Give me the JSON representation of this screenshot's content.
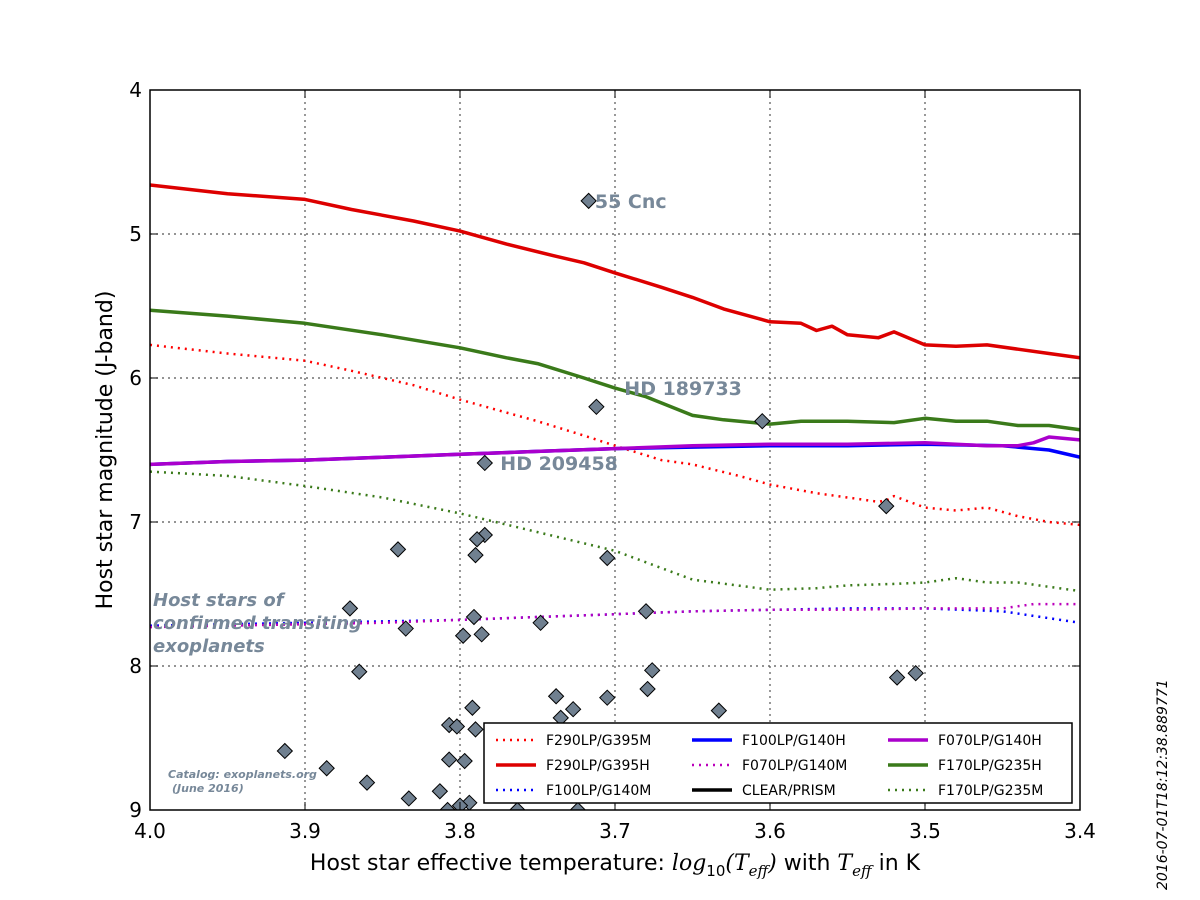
{
  "chart_data": {
    "type": "line",
    "xlabel_prefix": "Host star effective temperature: ",
    "xlabel_math1": "log",
    "xlabel_math1_sub": "10",
    "xlabel_math2": "(T",
    "xlabel_math2_sub": "eff",
    "xlabel_math3": ")",
    "xlabel_mid": " with ",
    "xlabel_math4": "T",
    "xlabel_math4_sub": "eff",
    "xlabel_suffix": " in K",
    "ylabel": "Host star magnitude (J-band)",
    "xlim": [
      4.0,
      3.4
    ],
    "ylim": [
      9,
      4
    ],
    "y_inverted": true,
    "grid": true,
    "grid_style": "dotted",
    "legend_placement": "lower-right",
    "x_ticks": [
      "4.0",
      "3.9",
      "3.8",
      "3.7",
      "3.6",
      "3.5",
      "3.4"
    ],
    "x_tick_values": [
      4.0,
      3.9,
      3.8,
      3.7,
      3.6,
      3.5,
      3.4
    ],
    "y_ticks": [
      "4",
      "5",
      "6",
      "7",
      "8",
      "9"
    ],
    "y_tick_values": [
      4,
      5,
      6,
      7,
      8,
      9
    ],
    "legend_columns": 3,
    "series": [
      {
        "name": "F290LP/G395M",
        "color": "#ff0000",
        "style": "dotted",
        "x": [
          4.0,
          3.95,
          3.9,
          3.87,
          3.83,
          3.8,
          3.77,
          3.75,
          3.72,
          3.7,
          3.67,
          3.65,
          3.62,
          3.6,
          3.57,
          3.55,
          3.53,
          3.525,
          3.52,
          3.5,
          3.48,
          3.46,
          3.44,
          3.42,
          3.4
        ],
        "y": [
          5.77,
          5.83,
          5.88,
          5.95,
          6.05,
          6.15,
          6.24,
          6.3,
          6.4,
          6.47,
          6.57,
          6.6,
          6.68,
          6.74,
          6.8,
          6.83,
          6.86,
          6.85,
          6.82,
          6.9,
          6.92,
          6.9,
          6.96,
          7.0,
          7.02
        ]
      },
      {
        "name": "F290LP/G395H",
        "color": "#dd0000",
        "style": "solid",
        "x": [
          4.0,
          3.95,
          3.9,
          3.87,
          3.83,
          3.8,
          3.77,
          3.74,
          3.72,
          3.7,
          3.67,
          3.65,
          3.63,
          3.6,
          3.58,
          3.57,
          3.56,
          3.55,
          3.53,
          3.52,
          3.5,
          3.48,
          3.46,
          3.44,
          3.42,
          3.4
        ],
        "y": [
          4.66,
          4.72,
          4.76,
          4.83,
          4.91,
          4.98,
          5.07,
          5.15,
          5.2,
          5.27,
          5.37,
          5.44,
          5.52,
          5.61,
          5.62,
          5.67,
          5.64,
          5.7,
          5.72,
          5.68,
          5.77,
          5.78,
          5.77,
          5.8,
          5.83,
          5.86
        ]
      },
      {
        "name": "F100LP/G140M",
        "color": "#0000ff",
        "style": "dotted",
        "x": [
          4.0,
          3.95,
          3.9,
          3.85,
          3.8,
          3.75,
          3.7,
          3.65,
          3.6,
          3.55,
          3.5,
          3.45,
          3.4
        ],
        "y": [
          7.72,
          7.71,
          7.7,
          7.69,
          7.68,
          7.66,
          7.64,
          7.62,
          7.61,
          7.6,
          7.6,
          7.62,
          7.7
        ]
      },
      {
        "name": "F100LP/G140H",
        "color": "#0000ff",
        "style": "solid",
        "x": [
          4.0,
          3.95,
          3.9,
          3.85,
          3.8,
          3.75,
          3.7,
          3.65,
          3.6,
          3.55,
          3.5,
          3.45,
          3.42,
          3.4
        ],
        "y": [
          6.6,
          6.58,
          6.57,
          6.55,
          6.53,
          6.51,
          6.49,
          6.48,
          6.47,
          6.47,
          6.46,
          6.47,
          6.5,
          6.55
        ]
      },
      {
        "name": "F070LP/G140M",
        "color": "#bb00bb",
        "style": "dotted",
        "x": [
          4.0,
          3.95,
          3.9,
          3.85,
          3.8,
          3.75,
          3.7,
          3.65,
          3.6,
          3.55,
          3.5,
          3.45,
          3.43,
          3.4
        ],
        "y": [
          7.73,
          7.72,
          7.71,
          7.7,
          7.68,
          7.66,
          7.64,
          7.62,
          7.61,
          7.61,
          7.6,
          7.6,
          7.57,
          7.57
        ]
      },
      {
        "name": "CLEAR/PRISM",
        "color": "#000000",
        "style": "solid",
        "x": [],
        "y": []
      },
      {
        "name": "F070LP/G140H",
        "color": "#aa00cc",
        "style": "solid",
        "x": [
          4.0,
          3.95,
          3.9,
          3.85,
          3.8,
          3.75,
          3.7,
          3.65,
          3.6,
          3.55,
          3.5,
          3.48,
          3.46,
          3.44,
          3.43,
          3.42,
          3.4
        ],
        "y": [
          6.6,
          6.58,
          6.57,
          6.55,
          6.53,
          6.51,
          6.49,
          6.47,
          6.46,
          6.46,
          6.45,
          6.46,
          6.47,
          6.47,
          6.45,
          6.41,
          6.43
        ]
      },
      {
        "name": "F170LP/G235H",
        "color": "#3a7a1a",
        "style": "solid",
        "x": [
          4.0,
          3.95,
          3.9,
          3.85,
          3.8,
          3.77,
          3.75,
          3.72,
          3.7,
          3.68,
          3.65,
          3.63,
          3.6,
          3.58,
          3.55,
          3.52,
          3.5,
          3.48,
          3.46,
          3.44,
          3.42,
          3.4
        ],
        "y": [
          5.53,
          5.57,
          5.62,
          5.7,
          5.79,
          5.86,
          5.9,
          6.0,
          6.07,
          6.13,
          6.26,
          6.29,
          6.32,
          6.3,
          6.3,
          6.31,
          6.28,
          6.3,
          6.3,
          6.33,
          6.33,
          6.36
        ]
      },
      {
        "name": "F170LP/G235M",
        "color": "#3a7a1a",
        "style": "dotted",
        "x": [
          4.0,
          3.95,
          3.9,
          3.85,
          3.8,
          3.75,
          3.7,
          3.65,
          3.6,
          3.57,
          3.55,
          3.52,
          3.5,
          3.48,
          3.46,
          3.44,
          3.42,
          3.4
        ],
        "y": [
          6.65,
          6.68,
          6.75,
          6.83,
          6.94,
          7.07,
          7.2,
          7.4,
          7.47,
          7.46,
          7.44,
          7.43,
          7.42,
          7.39,
          7.42,
          7.42,
          7.45,
          7.48
        ]
      }
    ],
    "scatter_points": {
      "x": [
        3.717,
        3.712,
        3.605,
        3.784,
        3.525,
        3.705,
        3.84,
        3.784,
        3.789,
        3.79,
        3.871,
        3.68,
        3.791,
        3.835,
        3.798,
        3.786,
        3.748,
        3.865,
        3.676,
        3.518,
        3.506,
        3.679,
        3.738,
        3.705,
        3.792,
        3.735,
        3.727,
        3.633,
        3.807,
        3.802,
        3.79,
        3.913,
        3.807,
        3.797,
        3.886,
        3.86,
        3.813,
        3.833,
        3.794,
        3.8,
        3.763,
        3.724,
        3.808
      ],
      "y": [
        4.77,
        6.2,
        6.3,
        6.59,
        6.89,
        7.25,
        7.19,
        7.09,
        7.12,
        7.23,
        7.6,
        7.62,
        7.66,
        7.74,
        7.79,
        7.78,
        7.7,
        8.04,
        8.03,
        8.08,
        8.05,
        8.16,
        8.21,
        8.22,
        8.29,
        8.36,
        8.3,
        8.31,
        8.41,
        8.42,
        8.44,
        8.59,
        8.65,
        8.66,
        8.71,
        8.81,
        8.87,
        8.92,
        8.95,
        8.97,
        9.0,
        9.0,
        9.0
      ]
    },
    "annotations": [
      {
        "text": "55 Cnc",
        "x": 3.713,
        "y": 4.77
      },
      {
        "text": "HD 189733",
        "x": 3.694,
        "y": 6.07
      },
      {
        "text": "HD 209458",
        "x": 3.774,
        "y": 6.59
      }
    ],
    "side_note_lines": [
      "Host stars of",
      "confirmed transiting",
      "exoplanets"
    ],
    "catalog_lines": [
      "Catalog: exoplanets.org",
      "(June 2016)"
    ],
    "timestamp": "2016-07-01T18:12:38.889771"
  }
}
